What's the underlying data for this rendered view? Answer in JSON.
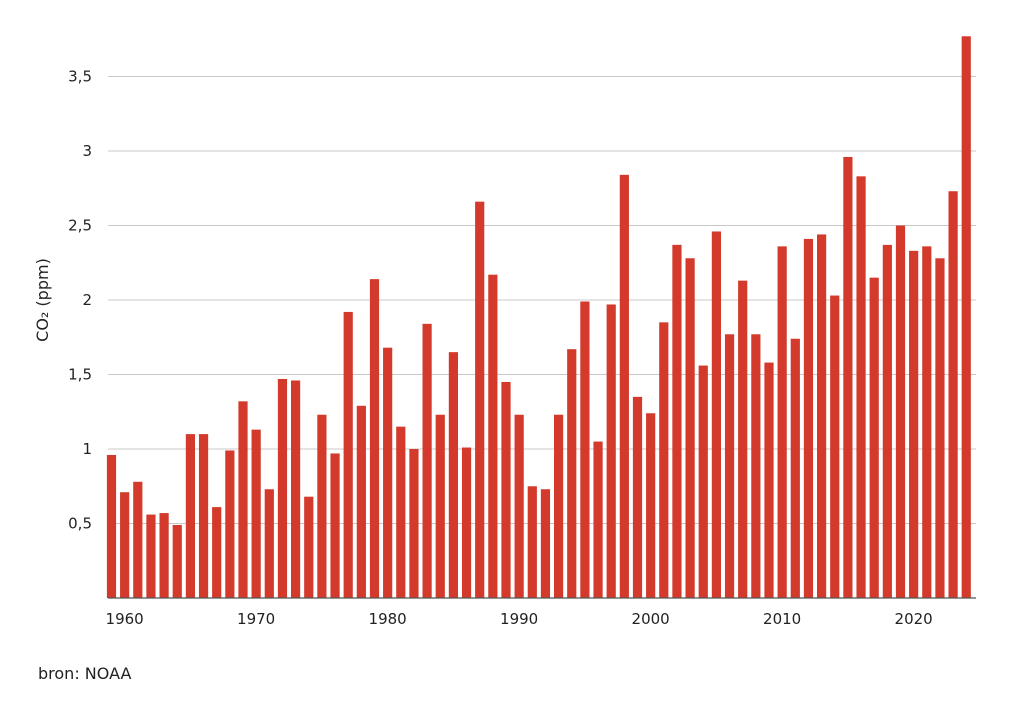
{
  "source_text": "bron: NOAA",
  "chart_data": {
    "type": "bar",
    "title": "",
    "xlabel": "",
    "ylabel": "CO₂ (ppm)",
    "ylim": [
      0,
      3.8
    ],
    "yticks": [
      0.5,
      1,
      1.5,
      2,
      2.5,
      3,
      3.5
    ],
    "ytick_labels": [
      "0,5",
      "1",
      "1,5",
      "2",
      "2,5",
      "3",
      "3,5"
    ],
    "xticks": [
      1960,
      1970,
      1980,
      1990,
      2000,
      2010,
      2020
    ],
    "xtick_labels": [
      "1960",
      "1970",
      "1980",
      "1990",
      "2000",
      "2010",
      "2020"
    ],
    "grid": true,
    "bar_color": "#d33a2c",
    "x": [
      1959,
      1960,
      1961,
      1962,
      1963,
      1964,
      1965,
      1966,
      1967,
      1968,
      1969,
      1970,
      1971,
      1972,
      1973,
      1974,
      1975,
      1976,
      1977,
      1978,
      1979,
      1980,
      1981,
      1982,
      1983,
      1984,
      1985,
      1986,
      1987,
      1988,
      1989,
      1990,
      1991,
      1992,
      1993,
      1994,
      1995,
      1996,
      1997,
      1998,
      1999,
      2000,
      2001,
      2002,
      2003,
      2004,
      2005,
      2006,
      2007,
      2008,
      2009,
      2010,
      2011,
      2012,
      2013,
      2014,
      2015,
      2016,
      2017,
      2018,
      2019,
      2020,
      2021,
      2022,
      2023,
      2024
    ],
    "values": [
      0.96,
      0.71,
      0.78,
      0.56,
      0.57,
      0.49,
      1.1,
      1.1,
      0.61,
      0.99,
      1.32,
      1.13,
      0.73,
      1.47,
      1.46,
      0.68,
      1.23,
      0.97,
      1.92,
      1.29,
      2.14,
      1.68,
      1.15,
      1.0,
      1.84,
      1.23,
      1.65,
      1.01,
      2.66,
      2.17,
      1.45,
      1.23,
      0.75,
      0.73,
      1.23,
      1.67,
      1.99,
      1.05,
      1.97,
      2.84,
      1.35,
      1.24,
      1.85,
      2.37,
      2.28,
      1.56,
      2.46,
      1.77,
      2.13,
      1.77,
      1.58,
      2.36,
      1.74,
      2.41,
      2.44,
      2.03,
      2.96,
      2.83,
      2.15,
      2.37,
      2.5,
      2.33,
      2.36,
      2.28,
      2.73,
      3.77
    ]
  }
}
